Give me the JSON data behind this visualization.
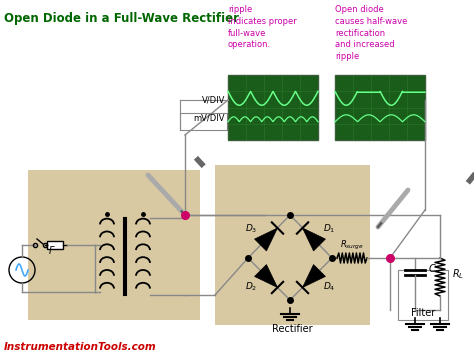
{
  "title": "Open Diode in a Full-Wave Rectifier",
  "title_color": "#006600",
  "bg_color": "#ffffff",
  "tan_bg": "#d8c9a3",
  "annotation1": "ripple\nindicates proper\nfull-wave\noperation.",
  "annotation2": "Open diode\ncauses half-wave\nrectification\nand increased\nripple",
  "annotation_color": "#cc00aa",
  "footer": "InstrumentationTools.com",
  "footer_color": "#cc0000",
  "osc_bg": "#1a5c1a",
  "osc_grid": "#2a7c2a",
  "wave_color": "#66ff88",
  "wire_color": "#888888",
  "dot_color": "#cc0066",
  "ac_wave_color": "#44aaff",
  "black": "#000000",
  "gray": "#999999"
}
